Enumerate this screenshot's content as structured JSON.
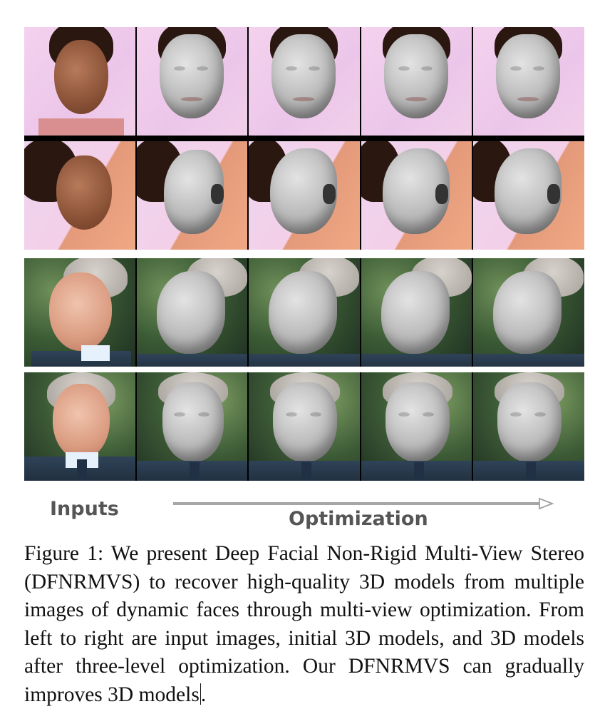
{
  "labels": {
    "inputs": "Inputs",
    "optimization": "Optimization"
  },
  "caption": {
    "text": "Figure 1: We present Deep Facial Non-Rigid Multi-View Stereo (DFNRMVS) to recover high-quality 3D models from multiple images of dynamic faces through multi-view optimization. From left to right are input images, initial 3D models, and 3D models after three-level optimization. Our DFNRMVS can gradually improves 3D models",
    "end_punct": "."
  },
  "colors": {
    "label_gray": "#555555",
    "arrow_gray": "#a6a6a6",
    "mesh_gray": "#b9b9b9"
  }
}
